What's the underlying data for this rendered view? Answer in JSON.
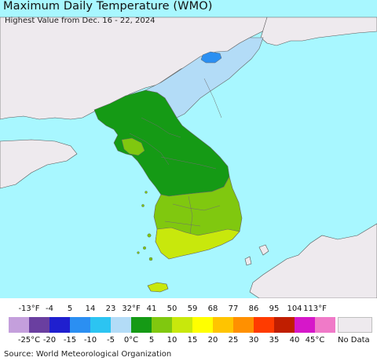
{
  "header": {
    "title": "Maximum Daily Temperature (WMO)",
    "subtitle": "Highest Value from Dec. 16 - 22, 2024"
  },
  "legend": {
    "fahrenheit_ticks": [
      "-13°F",
      "-4",
      "5",
      "14",
      "23",
      "32°F",
      "41",
      "50",
      "59",
      "68",
      "77",
      "86",
      "95",
      "104",
      "113°F"
    ],
    "celsius_ticks": [
      "-25°C",
      "-20",
      "-15",
      "-10",
      "-5",
      "0°C",
      "5",
      "10",
      "15",
      "20",
      "25",
      "30",
      "35",
      "40",
      "45°C"
    ],
    "colors": [
      "#c49fdc",
      "#6a3fa0",
      "#1f1fcf",
      "#2b8ff2",
      "#2cc4f2",
      "#b3dcf7",
      "#159a15",
      "#80c80f",
      "#c8e80c",
      "#ffff00",
      "#ffc400",
      "#ff9000",
      "#ff3b00",
      "#c01e00",
      "#d617c9",
      "#f07ac8"
    ],
    "no_data_label": "No Data",
    "no_data_color": "#eeeaee"
  },
  "map": {
    "ocean_color": "#a8f7ff",
    "land_no_data_color": "#eeeaee"
  },
  "footer": {
    "source": "Source: World Meteorological Organization"
  }
}
